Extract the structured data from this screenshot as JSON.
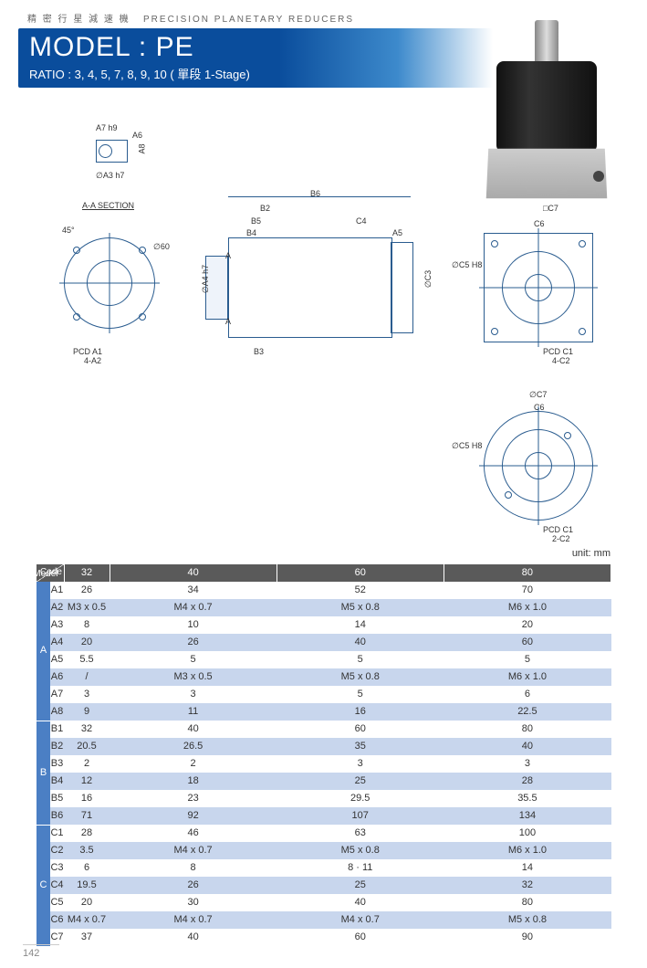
{
  "header": {
    "subtitle_cn": "精 密 行 星 減 速 機",
    "subtitle_en": "PRECISION PLANETARY REDUCERS",
    "model": "MODEL : PE",
    "ratio": "RATIO : 3, 4, 5, 7, 8, 9, 10 ( 單段 1-Stage)",
    "band_start_color": "#0a4d9c",
    "band_end_color": "#3d8acc"
  },
  "diagram": {
    "section_label": "A-A SECTION",
    "labels": [
      "A7 h9",
      "A6",
      "A8",
      "∅A3 h7",
      "45°",
      "∅60",
      "PCD A1",
      "4-A2",
      "B6",
      "B2",
      "B5",
      "B4",
      "C4",
      "A5",
      "∅A4 h7",
      "A",
      "A",
      "B3",
      "∅C3",
      "□C7",
      "C6",
      "∅C5 H8",
      "PCD C1",
      "4-C2",
      "∅C7",
      "C6",
      "∅C5 H8",
      "PCD C1",
      "2-C2"
    ],
    "line_color": "#2a5c8f"
  },
  "table": {
    "unit": "unit: mm",
    "header_model": "Model",
    "header_code": "Code",
    "models": [
      "32",
      "40",
      "60",
      "80"
    ],
    "header_bg": "#5a5a5a",
    "group_bg": "#4b7fc4",
    "row_even_bg": "#c8d6ed",
    "row_odd_bg": "#ffffff",
    "groups": [
      {
        "name": "A",
        "rows": [
          {
            "code": "A1",
            "vals": [
              "26",
              "34",
              "52",
              "70"
            ]
          },
          {
            "code": "A2",
            "vals": [
              "M3 x 0.5",
              "M4 x 0.7",
              "M5 x 0.8",
              "M6 x 1.0"
            ]
          },
          {
            "code": "A3",
            "vals": [
              "8",
              "10",
              "14",
              "20"
            ]
          },
          {
            "code": "A4",
            "vals": [
              "20",
              "26",
              "40",
              "60"
            ]
          },
          {
            "code": "A5",
            "vals": [
              "5.5",
              "5",
              "5",
              "5"
            ]
          },
          {
            "code": "A6",
            "vals": [
              "/",
              "M3 x 0.5",
              "M5 x 0.8",
              "M6 x 1.0"
            ]
          },
          {
            "code": "A7",
            "vals": [
              "3",
              "3",
              "5",
              "6"
            ]
          },
          {
            "code": "A8",
            "vals": [
              "9",
              "11",
              "16",
              "22.5"
            ]
          }
        ]
      },
      {
        "name": "B",
        "rows": [
          {
            "code": "B1",
            "vals": [
              "32",
              "40",
              "60",
              "80"
            ]
          },
          {
            "code": "B2",
            "vals": [
              "20.5",
              "26.5",
              "35",
              "40"
            ]
          },
          {
            "code": "B3",
            "vals": [
              "2",
              "2",
              "3",
              "3"
            ]
          },
          {
            "code": "B4",
            "vals": [
              "12",
              "18",
              "25",
              "28"
            ]
          },
          {
            "code": "B5",
            "vals": [
              "16",
              "23",
              "29.5",
              "35.5"
            ]
          },
          {
            "code": "B6",
            "vals": [
              "71",
              "92",
              "107",
              "134"
            ]
          }
        ]
      },
      {
        "name": "C",
        "rows": [
          {
            "code": "C1",
            "vals": [
              "28",
              "46",
              "63",
              "100"
            ]
          },
          {
            "code": "C2",
            "vals": [
              "3.5",
              "M4 x 0.7",
              "M5 x 0.8",
              "M6 x 1.0"
            ]
          },
          {
            "code": "C3",
            "vals": [
              "6",
              "8",
              "8 · 11",
              "14"
            ]
          },
          {
            "code": "C4",
            "vals": [
              "19.5",
              "26",
              "25",
              "32"
            ]
          },
          {
            "code": "C5",
            "vals": [
              "20",
              "30",
              "40",
              "80"
            ]
          },
          {
            "code": "C6",
            "vals": [
              "M4 x 0.7",
              "M4 x 0.7",
              "M4 x 0.7",
              "M5 x 0.8"
            ]
          },
          {
            "code": "C7",
            "vals": [
              "37",
              "40",
              "60",
              "90"
            ]
          }
        ]
      }
    ]
  },
  "page_number": "142"
}
